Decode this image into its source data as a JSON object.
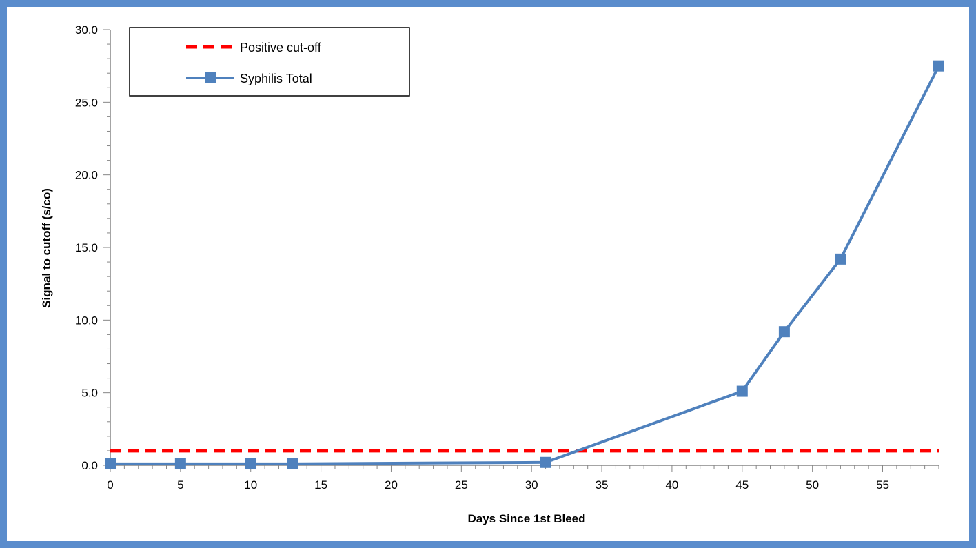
{
  "chart_data": {
    "type": "line",
    "title": "",
    "xlabel": "Days Since 1st Bleed",
    "ylabel": "Signal to cutoff (s/co)",
    "xlim": [
      0,
      59
    ],
    "ylim": [
      0,
      30
    ],
    "x_ticks": [
      "0",
      "5",
      "10",
      "15",
      "20",
      "25",
      "30",
      "35",
      "40",
      "45",
      "50",
      "55"
    ],
    "y_ticks": [
      "0.0",
      "5.0",
      "10.0",
      "15.0",
      "20.0",
      "25.0",
      "30.0"
    ],
    "grid": false,
    "legend_position": "top-left",
    "series": [
      {
        "name": "Positive cut-off",
        "style": "dashed",
        "color": "#ff0000",
        "x": [
          0,
          59
        ],
        "y": [
          1.0,
          1.0
        ]
      },
      {
        "name": "Syphilis Total",
        "style": "line-square-markers",
        "color": "#4f81bd",
        "x": [
          0,
          5,
          10,
          13,
          31,
          45,
          48,
          52,
          59
        ],
        "y": [
          0.1,
          0.1,
          0.1,
          0.1,
          0.2,
          5.1,
          9.2,
          14.2,
          27.5
        ]
      }
    ]
  },
  "colors": {
    "frame": "#5a8ccc",
    "axis": "#868686",
    "cutoff": "#ff0000",
    "series": "#4f81bd"
  }
}
